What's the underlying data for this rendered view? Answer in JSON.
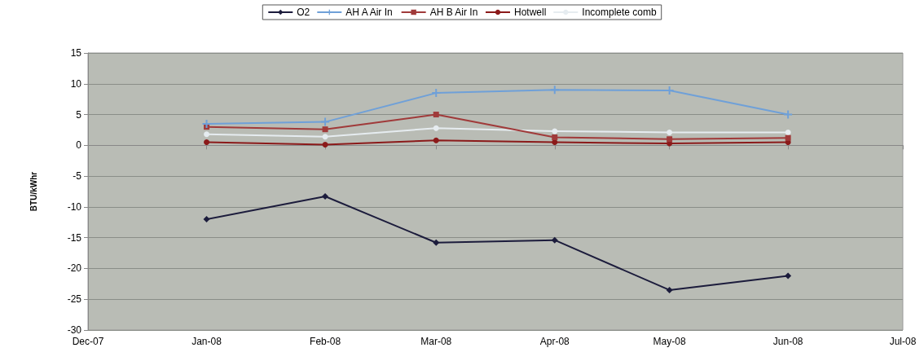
{
  "chart_data": {
    "type": "line",
    "ylabel": "BTU/kWhr",
    "x": [
      "2008-01",
      "2008-02",
      "2008-03",
      "2008-04",
      "2008-05",
      "2008-06"
    ],
    "xlim": [
      "2007-12",
      "2008-07"
    ],
    "xticks": [
      {
        "value": "2007-12",
        "label": "Dec-07"
      },
      {
        "value": "2008-01",
        "label": "Jan-08"
      },
      {
        "value": "2008-02",
        "label": "Feb-08"
      },
      {
        "value": "2008-03",
        "label": "Mar-08"
      },
      {
        "value": "2008-04",
        "label": "Apr-08"
      },
      {
        "value": "2008-05",
        "label": "May-08"
      },
      {
        "value": "2008-06",
        "label": "Jun-08"
      },
      {
        "value": "2008-07",
        "label": "Jul-08"
      }
    ],
    "ylim": [
      -30,
      15
    ],
    "yticks": [
      -30,
      -25,
      -20,
      -15,
      -10,
      -5,
      0,
      5,
      10,
      15
    ],
    "grid": "y",
    "legend": "top",
    "series": [
      {
        "name": "O2",
        "color": "#1c1c3c",
        "marker": "diamond",
        "values": [
          -12,
          -8.3,
          -15.8,
          -15.4,
          -23.5,
          -21.2
        ]
      },
      {
        "name": "AH A Air In",
        "color": "#6fa0d8",
        "marker": "cross",
        "values": [
          3.5,
          3.8,
          8.5,
          9,
          8.9,
          5
        ]
      },
      {
        "name": "AH B Air In",
        "color": "#a03a3a",
        "marker": "square",
        "values": [
          3,
          2.6,
          5,
          1.3,
          1,
          1.2
        ]
      },
      {
        "name": "Hotwell",
        "color": "#8b1a1a",
        "marker": "circle",
        "values": [
          0.5,
          0.1,
          0.8,
          0.5,
          0.3,
          0.5
        ]
      },
      {
        "name": "Incomplete comb",
        "color": "#e6ecf0",
        "marker": "circle",
        "values": [
          1.8,
          1.4,
          2.8,
          2.3,
          2.1,
          2.1
        ]
      }
    ]
  }
}
